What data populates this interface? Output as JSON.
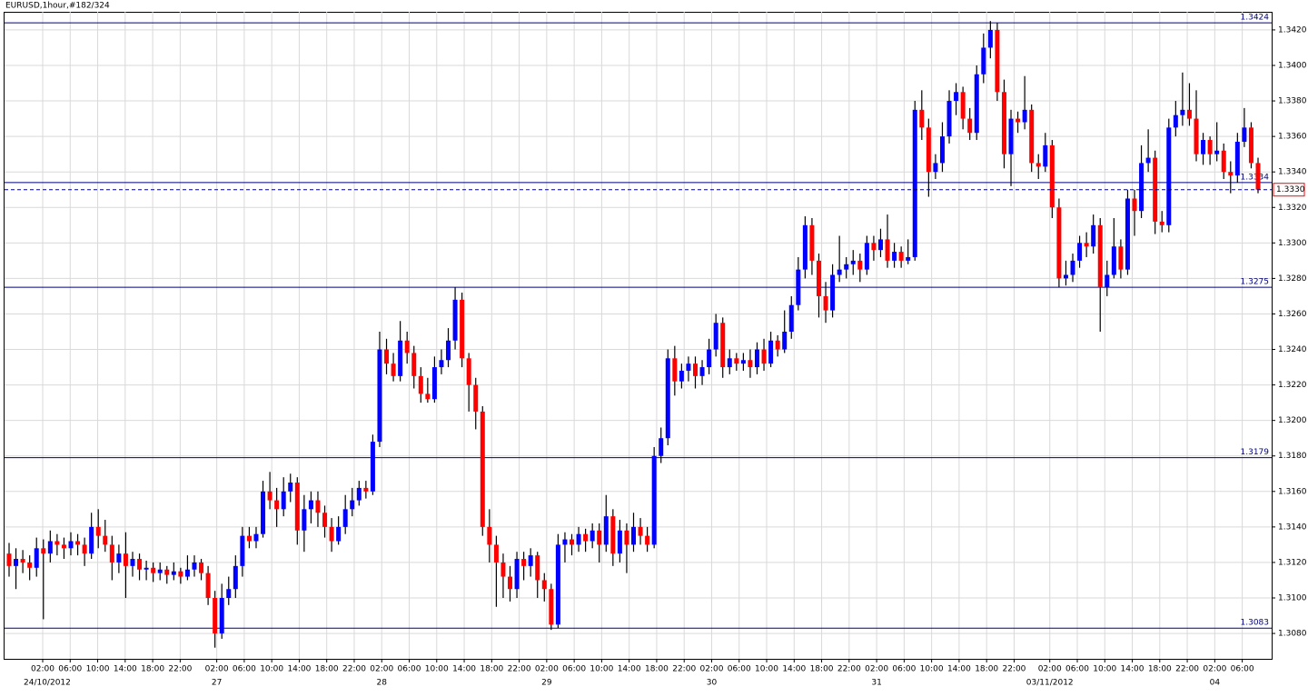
{
  "chart_data": {
    "type": "candlestick",
    "title": "EURUSD,1hour,#182/324",
    "up_color": "#0000ff",
    "down_color": "#ff0000",
    "wick_color": "#000000",
    "level_color": "#000080",
    "grid": true,
    "ylim": [
      1.30657,
      1.34302
    ],
    "yticks": [
      {
        "value": 1.308,
        "label": "1.3080"
      },
      {
        "value": 1.31,
        "label": "1.3100"
      },
      {
        "value": 1.312,
        "label": "1.3120"
      },
      {
        "value": 1.314,
        "label": "1.3140"
      },
      {
        "value": 1.316,
        "label": "1.3160"
      },
      {
        "value": 1.318,
        "label": "1.3180"
      },
      {
        "value": 1.32,
        "label": "1.3200"
      },
      {
        "value": 1.322,
        "label": "1.3220"
      },
      {
        "value": 1.324,
        "label": "1.3240"
      },
      {
        "value": 1.326,
        "label": "1.3260"
      },
      {
        "value": 1.328,
        "label": "1.3280"
      },
      {
        "value": 1.33,
        "label": "1.3300"
      },
      {
        "value": 1.332,
        "label": "1.3320"
      },
      {
        "value": 1.334,
        "label": "1.3340"
      },
      {
        "value": 1.336,
        "label": "1.3360"
      },
      {
        "value": 1.338,
        "label": "1.3380"
      },
      {
        "value": 1.34,
        "label": "1.3400"
      },
      {
        "value": 1.342,
        "label": "1.3420"
      }
    ],
    "levels": [
      1.3424,
      1.3334,
      1.3275,
      1.3179,
      1.3083
    ],
    "current_price": 1.333,
    "current_price_label": "1.3330",
    "time_labels": [
      "02:00",
      "06:00",
      "10:00",
      "14:00",
      "18:00",
      "22:00",
      "02:00",
      "06:00",
      "10:00",
      "14:00",
      "18:00",
      "22:00",
      "02:00",
      "06:00",
      "10:00",
      "14:00",
      "18:00",
      "22:00",
      "02:00",
      "06:00",
      "10:00",
      "14:00",
      "18:00",
      "22:00",
      "02:00",
      "06:00",
      "10:00",
      "14:00",
      "18:00",
      "22:00",
      "02:00",
      "06:00",
      "10:00",
      "14:00",
      "18:00",
      "22:00",
      "02:00",
      "06:00",
      "10:00",
      "14:00",
      "18:00",
      "22:00",
      "02:00",
      "06:00"
    ],
    "date_labels": [
      "24/10/2012",
      "27",
      "28",
      "29",
      "30",
      "31",
      "03/11/2012",
      "04"
    ],
    "candles": [
      [
        1.3125,
        1.3131,
        1.3112,
        1.3118
      ],
      [
        1.3118,
        1.3128,
        1.3105,
        1.3122
      ],
      [
        1.3122,
        1.3127,
        1.3114,
        1.312
      ],
      [
        1.312,
        1.3124,
        1.311,
        1.3117
      ],
      [
        1.3117,
        1.3134,
        1.3112,
        1.3128
      ],
      [
        1.3128,
        1.3133,
        1.3088,
        1.3125
      ],
      [
        1.3125,
        1.3138,
        1.312,
        1.3132
      ],
      [
        1.3132,
        1.3136,
        1.3124,
        1.313
      ],
      [
        1.313,
        1.3134,
        1.3122,
        1.3128
      ],
      [
        1.3128,
        1.3137,
        1.3124,
        1.3132
      ],
      [
        1.3132,
        1.3136,
        1.3124,
        1.313
      ],
      [
        1.313,
        1.3134,
        1.3118,
        1.3125
      ],
      [
        1.3125,
        1.3148,
        1.3122,
        1.314
      ],
      [
        1.314,
        1.315,
        1.3128,
        1.3135
      ],
      [
        1.3135,
        1.3144,
        1.3126,
        1.313
      ],
      [
        1.313,
        1.3135,
        1.311,
        1.312
      ],
      [
        1.312,
        1.313,
        1.3114,
        1.3125
      ],
      [
        1.3125,
        1.3137,
        1.31,
        1.3118
      ],
      [
        1.3118,
        1.3126,
        1.3112,
        1.3122
      ],
      [
        1.3122,
        1.3125,
        1.311,
        1.3116
      ],
      [
        1.3116,
        1.3121,
        1.311,
        1.3117
      ],
      [
        1.3117,
        1.312,
        1.3109,
        1.3114
      ],
      [
        1.3114,
        1.312,
        1.311,
        1.3116
      ],
      [
        1.3116,
        1.3118,
        1.3108,
        1.3113
      ],
      [
        1.3113,
        1.312,
        1.311,
        1.3115
      ],
      [
        1.3115,
        1.3117,
        1.3108,
        1.3112
      ],
      [
        1.3112,
        1.3124,
        1.311,
        1.3116
      ],
      [
        1.3116,
        1.3124,
        1.3112,
        1.312
      ],
      [
        1.312,
        1.3122,
        1.311,
        1.3114
      ],
      [
        1.3114,
        1.3118,
        1.3096,
        1.31
      ],
      [
        1.31,
        1.3104,
        1.3072,
        1.308
      ],
      [
        1.308,
        1.3108,
        1.3077,
        1.31
      ],
      [
        1.31,
        1.3112,
        1.3096,
        1.3105
      ],
      [
        1.3105,
        1.3124,
        1.31,
        1.3118
      ],
      [
        1.3118,
        1.314,
        1.3112,
        1.3135
      ],
      [
        1.3135,
        1.314,
        1.3128,
        1.3132
      ],
      [
        1.3132,
        1.314,
        1.3128,
        1.3136
      ],
      [
        1.3136,
        1.3166,
        1.3134,
        1.316
      ],
      [
        1.316,
        1.3171,
        1.315,
        1.3155
      ],
      [
        1.3155,
        1.3162,
        1.314,
        1.315
      ],
      [
        1.315,
        1.3168,
        1.3146,
        1.316
      ],
      [
        1.316,
        1.317,
        1.3154,
        1.3165
      ],
      [
        1.3165,
        1.3168,
        1.313,
        1.3138
      ],
      [
        1.3138,
        1.3158,
        1.3126,
        1.315
      ],
      [
        1.315,
        1.316,
        1.3142,
        1.3155
      ],
      [
        1.3155,
        1.316,
        1.314,
        1.3148
      ],
      [
        1.3148,
        1.3152,
        1.3134,
        1.314
      ],
      [
        1.314,
        1.3145,
        1.3126,
        1.3132
      ],
      [
        1.3132,
        1.3146,
        1.313,
        1.314
      ],
      [
        1.314,
        1.3158,
        1.3136,
        1.315
      ],
      [
        1.315,
        1.3162,
        1.3146,
        1.3155
      ],
      [
        1.3155,
        1.3166,
        1.3152,
        1.3162
      ],
      [
        1.3162,
        1.3166,
        1.3156,
        1.316
      ],
      [
        1.316,
        1.3192,
        1.3158,
        1.3188
      ],
      [
        1.3188,
        1.325,
        1.3185,
        1.324
      ],
      [
        1.324,
        1.3246,
        1.3226,
        1.3232
      ],
      [
        1.3232,
        1.3238,
        1.3222,
        1.3225
      ],
      [
        1.3225,
        1.3256,
        1.3222,
        1.3245
      ],
      [
        1.3245,
        1.325,
        1.3232,
        1.3238
      ],
      [
        1.3238,
        1.3242,
        1.3218,
        1.3225
      ],
      [
        1.3225,
        1.323,
        1.321,
        1.3215
      ],
      [
        1.3215,
        1.3224,
        1.321,
        1.3212
      ],
      [
        1.3212,
        1.3236,
        1.321,
        1.323
      ],
      [
        1.323,
        1.324,
        1.3226,
        1.3234
      ],
      [
        1.3234,
        1.3252,
        1.323,
        1.3245
      ],
      [
        1.3245,
        1.3275,
        1.324,
        1.3268
      ],
      [
        1.3268,
        1.3272,
        1.323,
        1.3235
      ],
      [
        1.3235,
        1.3238,
        1.3205,
        1.322
      ],
      [
        1.322,
        1.3224,
        1.3195,
        1.3205
      ],
      [
        1.3205,
        1.3208,
        1.3135,
        1.314
      ],
      [
        1.314,
        1.315,
        1.312,
        1.313
      ],
      [
        1.313,
        1.3135,
        1.3095,
        1.312
      ],
      [
        1.312,
        1.3125,
        1.31,
        1.3112
      ],
      [
        1.3112,
        1.3118,
        1.3098,
        1.3105
      ],
      [
        1.3105,
        1.3126,
        1.31,
        1.3122
      ],
      [
        1.3122,
        1.3126,
        1.311,
        1.3118
      ],
      [
        1.3118,
        1.3128,
        1.3112,
        1.3124
      ],
      [
        1.3124,
        1.3126,
        1.31,
        1.311
      ],
      [
        1.311,
        1.3114,
        1.3098,
        1.3105
      ],
      [
        1.3105,
        1.3108,
        1.3082,
        1.3085
      ],
      [
        1.3085,
        1.3136,
        1.3083,
        1.313
      ],
      [
        1.313,
        1.3137,
        1.312,
        1.3133
      ],
      [
        1.3133,
        1.3136,
        1.3124,
        1.313
      ],
      [
        1.313,
        1.314,
        1.3126,
        1.3136
      ],
      [
        1.3136,
        1.3139,
        1.3126,
        1.3132
      ],
      [
        1.3132,
        1.3142,
        1.3128,
        1.3138
      ],
      [
        1.3138,
        1.3142,
        1.312,
        1.313
      ],
      [
        1.313,
        1.3158,
        1.3126,
        1.3146
      ],
      [
        1.3146,
        1.315,
        1.3118,
        1.3125
      ],
      [
        1.3125,
        1.3144,
        1.312,
        1.3138
      ],
      [
        1.3138,
        1.3142,
        1.3114,
        1.313
      ],
      [
        1.313,
        1.3148,
        1.3126,
        1.314
      ],
      [
        1.314,
        1.3145,
        1.313,
        1.3135
      ],
      [
        1.3135,
        1.314,
        1.3126,
        1.313
      ],
      [
        1.313,
        1.3185,
        1.3128,
        1.318
      ],
      [
        1.318,
        1.3196,
        1.3176,
        1.319
      ],
      [
        1.319,
        1.324,
        1.3186,
        1.3235
      ],
      [
        1.3235,
        1.3242,
        1.3214,
        1.3222
      ],
      [
        1.3222,
        1.3232,
        1.3218,
        1.3228
      ],
      [
        1.3228,
        1.3236,
        1.3222,
        1.3232
      ],
      [
        1.3232,
        1.3236,
        1.3218,
        1.3225
      ],
      [
        1.3225,
        1.3234,
        1.322,
        1.323
      ],
      [
        1.323,
        1.3246,
        1.3226,
        1.324
      ],
      [
        1.324,
        1.326,
        1.3236,
        1.3255
      ],
      [
        1.3255,
        1.3258,
        1.3224,
        1.323
      ],
      [
        1.323,
        1.324,
        1.3226,
        1.3235
      ],
      [
        1.3235,
        1.3238,
        1.3228,
        1.3232
      ],
      [
        1.3232,
        1.3238,
        1.3228,
        1.3234
      ],
      [
        1.3234,
        1.324,
        1.3224,
        1.323
      ],
      [
        1.323,
        1.3244,
        1.3226,
        1.324
      ],
      [
        1.324,
        1.3246,
        1.3228,
        1.3232
      ],
      [
        1.3232,
        1.325,
        1.323,
        1.3245
      ],
      [
        1.3245,
        1.3248,
        1.3236,
        1.324
      ],
      [
        1.324,
        1.3262,
        1.3238,
        1.325
      ],
      [
        1.325,
        1.327,
        1.3246,
        1.3265
      ],
      [
        1.3265,
        1.3292,
        1.3262,
        1.3285
      ],
      [
        1.3285,
        1.3315,
        1.328,
        1.331
      ],
      [
        1.331,
        1.3314,
        1.3282,
        1.329
      ],
      [
        1.329,
        1.3294,
        1.3258,
        1.327
      ],
      [
        1.327,
        1.3278,
        1.3255,
        1.3262
      ],
      [
        1.3262,
        1.3288,
        1.3258,
        1.3282
      ],
      [
        1.3282,
        1.3304,
        1.3278,
        1.3285
      ],
      [
        1.3285,
        1.3292,
        1.328,
        1.3288
      ],
      [
        1.3288,
        1.3296,
        1.3282,
        1.329
      ],
      [
        1.329,
        1.3294,
        1.3278,
        1.3285
      ],
      [
        1.3285,
        1.3304,
        1.3282,
        1.33
      ],
      [
        1.33,
        1.3304,
        1.329,
        1.3296
      ],
      [
        1.3296,
        1.3308,
        1.3292,
        1.3302
      ],
      [
        1.3302,
        1.3316,
        1.3286,
        1.329
      ],
      [
        1.329,
        1.33,
        1.3286,
        1.3295
      ],
      [
        1.3295,
        1.3298,
        1.3286,
        1.329
      ],
      [
        1.329,
        1.3302,
        1.3288,
        1.3292
      ],
      [
        1.3292,
        1.338,
        1.329,
        1.3375
      ],
      [
        1.3375,
        1.3386,
        1.3358,
        1.3365
      ],
      [
        1.3365,
        1.337,
        1.3326,
        1.334
      ],
      [
        1.334,
        1.335,
        1.3336,
        1.3345
      ],
      [
        1.3345,
        1.3368,
        1.334,
        1.336
      ],
      [
        1.336,
        1.3386,
        1.3356,
        1.338
      ],
      [
        1.338,
        1.339,
        1.3372,
        1.3385
      ],
      [
        1.3385,
        1.3388,
        1.3364,
        1.337
      ],
      [
        1.337,
        1.3376,
        1.3358,
        1.3362
      ],
      [
        1.3362,
        1.34,
        1.3358,
        1.3395
      ],
      [
        1.3395,
        1.3418,
        1.339,
        1.341
      ],
      [
        1.341,
        1.3425,
        1.3404,
        1.342
      ],
      [
        1.342,
        1.3424,
        1.338,
        1.3385
      ],
      [
        1.3385,
        1.3392,
        1.3342,
        1.335
      ],
      [
        1.335,
        1.3375,
        1.3332,
        1.337
      ],
      [
        1.337,
        1.3374,
        1.3362,
        1.3368
      ],
      [
        1.3368,
        1.3394,
        1.3364,
        1.3375
      ],
      [
        1.3375,
        1.3378,
        1.334,
        1.3345
      ],
      [
        1.3345,
        1.335,
        1.3336,
        1.3343
      ],
      [
        1.3343,
        1.3362,
        1.334,
        1.3355
      ],
      [
        1.3355,
        1.3358,
        1.3314,
        1.332
      ],
      [
        1.332,
        1.3325,
        1.3275,
        1.328
      ],
      [
        1.328,
        1.329,
        1.3276,
        1.3282
      ],
      [
        1.3282,
        1.3294,
        1.3278,
        1.329
      ],
      [
        1.329,
        1.3304,
        1.3286,
        1.33
      ],
      [
        1.33,
        1.3306,
        1.3292,
        1.3298
      ],
      [
        1.3298,
        1.3316,
        1.3294,
        1.331
      ],
      [
        1.331,
        1.3314,
        1.325,
        1.3275
      ],
      [
        1.3275,
        1.329,
        1.327,
        1.3282
      ],
      [
        1.3282,
        1.3314,
        1.328,
        1.3298
      ],
      [
        1.3298,
        1.3302,
        1.328,
        1.3285
      ],
      [
        1.3285,
        1.333,
        1.3282,
        1.3325
      ],
      [
        1.3325,
        1.333,
        1.3304,
        1.3318
      ],
      [
        1.3318,
        1.3355,
        1.3314,
        1.3345
      ],
      [
        1.3345,
        1.3364,
        1.334,
        1.3348
      ],
      [
        1.3348,
        1.3352,
        1.3305,
        1.3312
      ],
      [
        1.3312,
        1.3318,
        1.3306,
        1.331
      ],
      [
        1.331,
        1.337,
        1.3306,
        1.3365
      ],
      [
        1.3365,
        1.338,
        1.336,
        1.3372
      ],
      [
        1.3372,
        1.3396,
        1.3366,
        1.3375
      ],
      [
        1.3375,
        1.339,
        1.3366,
        1.337
      ],
      [
        1.337,
        1.3386,
        1.3346,
        1.335
      ],
      [
        1.335,
        1.3362,
        1.3344,
        1.3358
      ],
      [
        1.3358,
        1.336,
        1.3344,
        1.335
      ],
      [
        1.335,
        1.3368,
        1.3346,
        1.3352
      ],
      [
        1.3352,
        1.3356,
        1.3336,
        1.334
      ],
      [
        1.334,
        1.3346,
        1.3328,
        1.3338
      ],
      [
        1.3338,
        1.3362,
        1.3334,
        1.3357
      ],
      [
        1.3357,
        1.3376,
        1.3354,
        1.3365
      ],
      [
        1.3365,
        1.3368,
        1.3342,
        1.3345
      ],
      [
        1.3345,
        1.3348,
        1.3328,
        1.333
      ]
    ]
  }
}
